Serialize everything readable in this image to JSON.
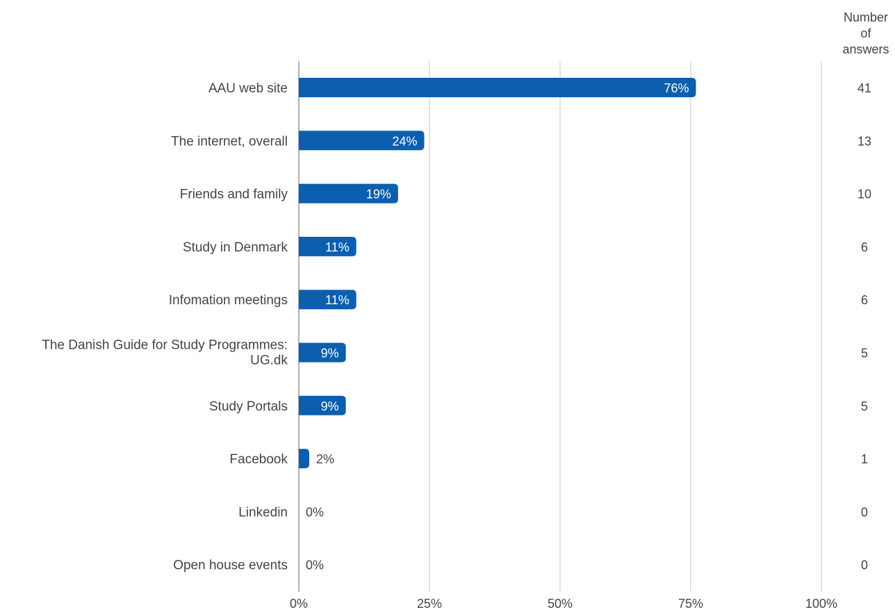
{
  "chart_data": {
    "type": "bar",
    "orientation": "horizontal",
    "categories": [
      "AAU web site",
      "The internet, overall",
      "Friends and family",
      "Study in Denmark",
      "Infomation meetings",
      "The Danish Guide for Study Programmes: UG.dk",
      "Study Portals",
      "Facebook",
      "Linkedin",
      "Open house events"
    ],
    "values": [
      76,
      24,
      19,
      11,
      11,
      9,
      9,
      2,
      0,
      0
    ],
    "value_labels": [
      "76%",
      "24%",
      "19%",
      "11%",
      "11%",
      "9%",
      "9%",
      "2%",
      "0%",
      "0%"
    ],
    "counts": [
      41,
      13,
      10,
      6,
      6,
      5,
      5,
      1,
      0,
      0
    ],
    "count_header": [
      "Number",
      "of",
      "answers"
    ],
    "xlim": [
      0,
      100
    ],
    "xticks": [
      "0%",
      "25%",
      "50%",
      "75%",
      "100%"
    ],
    "grid": true,
    "bar_color": "#0b5fae"
  }
}
